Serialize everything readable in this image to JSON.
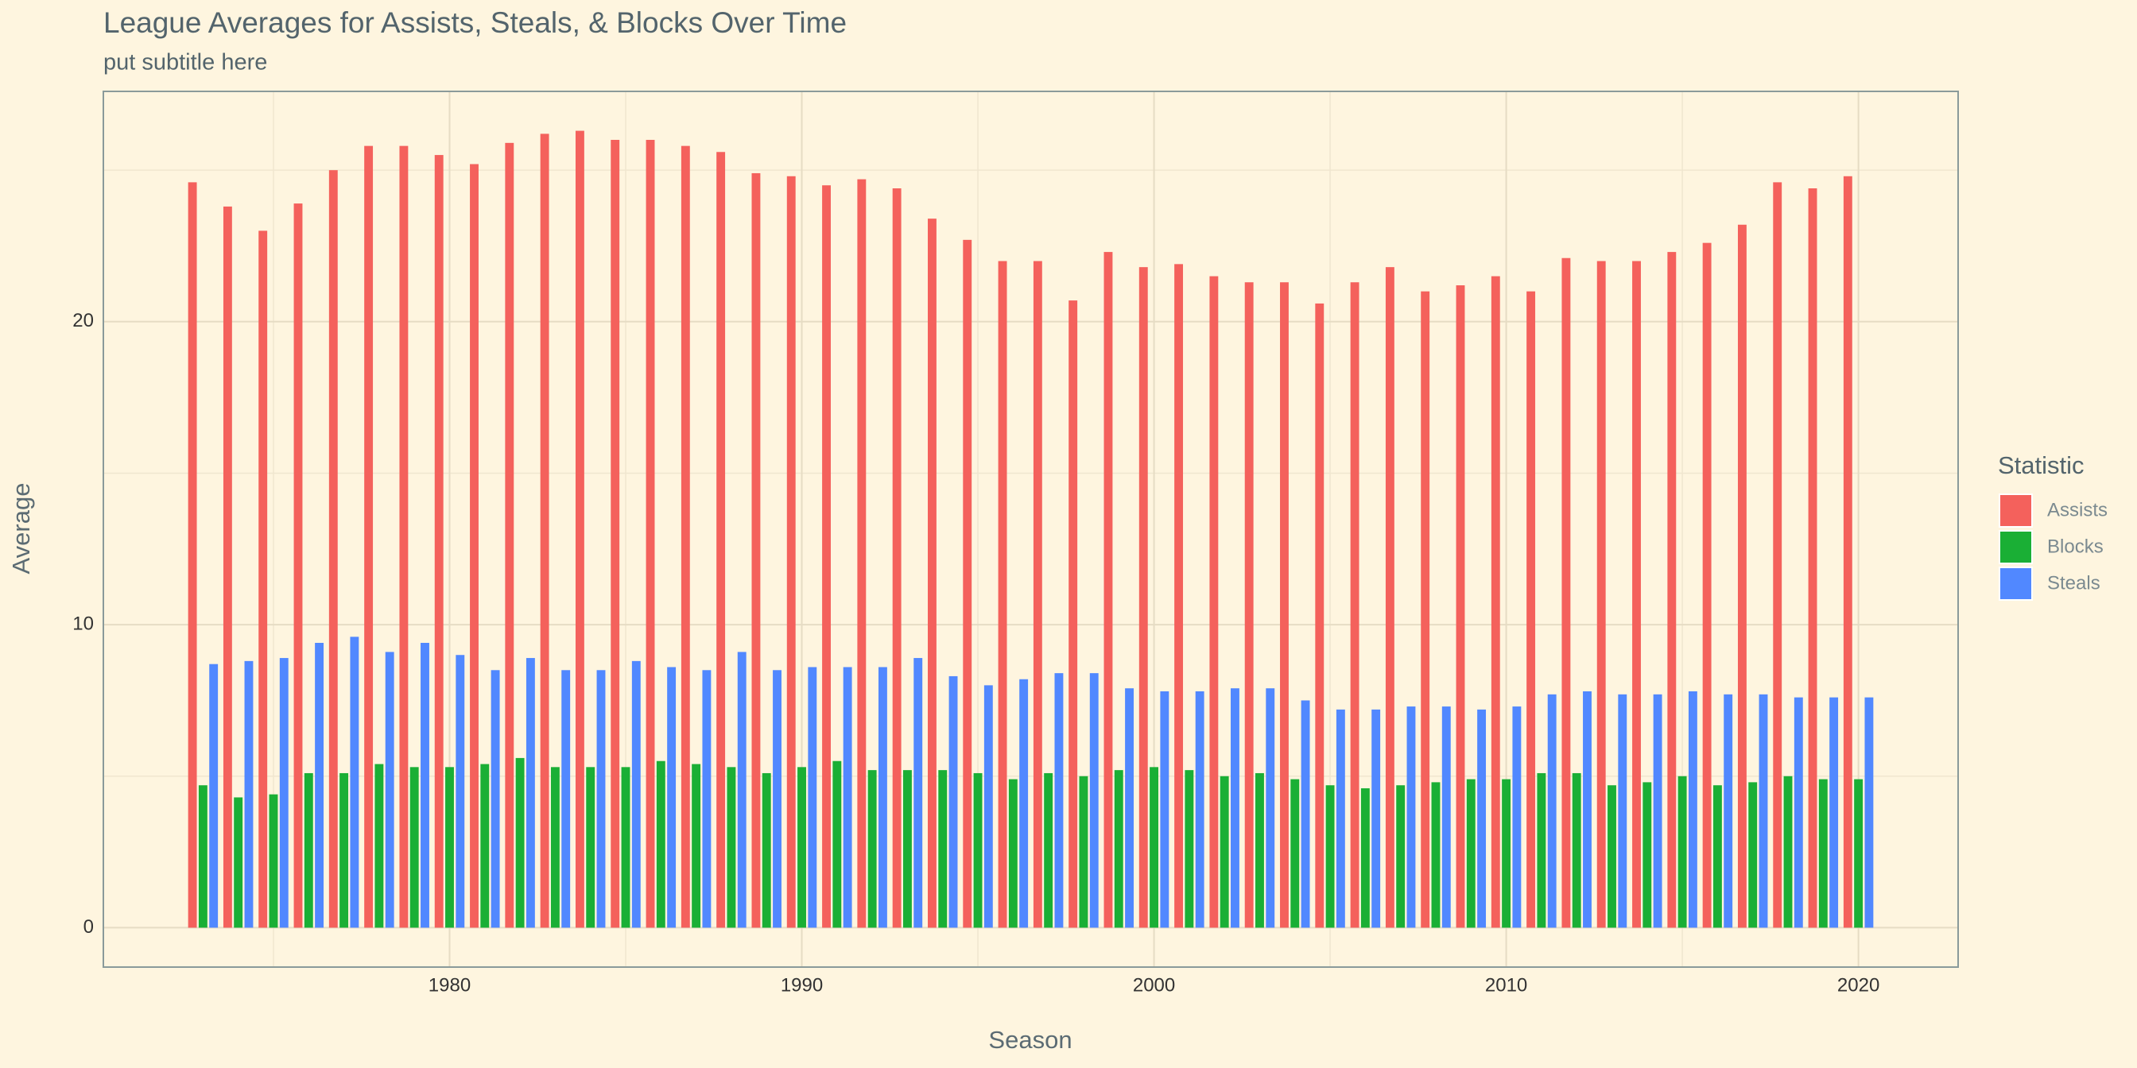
{
  "chart_data": {
    "type": "bar",
    "title": "League Averages for Assists, Steals, & Blocks Over Time",
    "subtitle": "put subtitle here",
    "x_label": "Season",
    "y_label": "Average",
    "legend_title": "Statistic",
    "legend": "right",
    "x": [
      1973,
      1974,
      1975,
      1976,
      1977,
      1978,
      1979,
      1980,
      1981,
      1982,
      1983,
      1984,
      1985,
      1986,
      1987,
      1988,
      1989,
      1990,
      1991,
      1992,
      1993,
      1994,
      1995,
      1996,
      1997,
      1998,
      1999,
      2000,
      2001,
      2002,
      2003,
      2004,
      2005,
      2006,
      2007,
      2008,
      2009,
      2010,
      2011,
      2012,
      2013,
      2014,
      2015,
      2016,
      2017,
      2018,
      2019,
      2020
    ],
    "series": [
      {
        "name": "Assists",
        "color": "#f4615c",
        "values": [
          24.6,
          23.8,
          23.0,
          23.9,
          25.0,
          25.8,
          25.8,
          25.5,
          25.2,
          25.9,
          26.2,
          26.3,
          26.0,
          26.0,
          25.8,
          25.6,
          24.9,
          24.8,
          24.5,
          24.7,
          24.4,
          23.4,
          22.7,
          22.0,
          22.0,
          20.7,
          22.3,
          21.8,
          21.9,
          21.5,
          21.3,
          21.3,
          20.6,
          21.3,
          21.8,
          21.0,
          21.2,
          21.5,
          21.0,
          22.1,
          22.0,
          22.0,
          22.3,
          22.6,
          23.2,
          24.6,
          24.4,
          24.8
        ]
      },
      {
        "name": "Blocks",
        "color": "#1aaf35",
        "values": [
          4.7,
          4.3,
          4.4,
          5.1,
          5.1,
          5.4,
          5.3,
          5.3,
          5.4,
          5.6,
          5.3,
          5.3,
          5.3,
          5.5,
          5.4,
          5.3,
          5.1,
          5.3,
          5.5,
          5.2,
          5.2,
          5.2,
          5.1,
          4.9,
          5.1,
          5.0,
          5.2,
          5.3,
          5.2,
          5.0,
          5.1,
          4.9,
          4.7,
          4.6,
          4.7,
          4.8,
          4.9,
          4.9,
          5.1,
          5.1,
          4.7,
          4.8,
          5.0,
          4.7,
          4.8,
          5.0,
          4.9,
          4.9
        ]
      },
      {
        "name": "Steals",
        "color": "#5188ff",
        "values": [
          8.7,
          8.8,
          8.9,
          9.4,
          9.6,
          9.1,
          9.4,
          9.0,
          8.5,
          8.9,
          8.5,
          8.5,
          8.8,
          8.6,
          8.5,
          9.1,
          8.5,
          8.6,
          8.6,
          8.6,
          8.9,
          8.3,
          8.0,
          8.2,
          8.4,
          8.4,
          7.9,
          7.8,
          7.8,
          7.9,
          7.9,
          7.5,
          7.2,
          7.2,
          7.3,
          7.3,
          7.2,
          7.3,
          7.7,
          7.8,
          7.7,
          7.7,
          7.8,
          7.7,
          7.7,
          7.6,
          7.6,
          7.6
        ]
      }
    ],
    "xlim": [
      1970.17,
      2022.83
    ],
    "xticks": [
      1980,
      1990,
      2000,
      2010,
      2020
    ],
    "xminor": [
      1975,
      1985,
      1995,
      2005,
      2015
    ],
    "ylim": [
      -1.3,
      27.6
    ],
    "yticks": [
      0,
      10,
      20
    ],
    "yminor": [
      5,
      15,
      25
    ],
    "grid": true
  }
}
